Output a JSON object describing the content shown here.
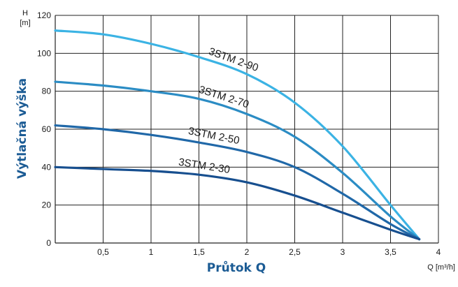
{
  "chart_data": {
    "type": "line",
    "xlabel": "Průtok Q",
    "ylabel": "Výtlačná výška",
    "x_unit_label": "Q [m³/h]",
    "y_unit_label_top": "H",
    "y_unit_label_bottom": "[m]",
    "xlim": [
      0,
      4
    ],
    "ylim": [
      0,
      120
    ],
    "x_ticks": [
      {
        "value": 0.5,
        "label": "0,5"
      },
      {
        "value": 1,
        "label": "1"
      },
      {
        "value": 1.5,
        "label": "1,5"
      },
      {
        "value": 2,
        "label": "2"
      },
      {
        "value": 2.5,
        "label": "2,5"
      },
      {
        "value": 3,
        "label": "3"
      },
      {
        "value": 3.5,
        "label": "3,5"
      },
      {
        "value": 4,
        "label": "4"
      }
    ],
    "y_ticks": [
      {
        "value": 0,
        "label": "0"
      },
      {
        "value": 20,
        "label": "20"
      },
      {
        "value": 40,
        "label": "40"
      },
      {
        "value": 60,
        "label": "60"
      },
      {
        "value": 80,
        "label": "80"
      },
      {
        "value": 100,
        "label": "100"
      },
      {
        "value": 120,
        "label": "120"
      }
    ],
    "grid": true,
    "series": [
      {
        "name": "3STM 2-90",
        "color": "#3bb3e4",
        "x": [
          0,
          0.5,
          1,
          1.5,
          2,
          2.5,
          3,
          3.5,
          3.8
        ],
        "y": [
          112,
          110,
          105,
          98,
          89,
          74,
          51,
          20,
          2
        ]
      },
      {
        "name": "3STM 2-70",
        "color": "#2b8cc4",
        "x": [
          0,
          0.5,
          1,
          1.5,
          2,
          2.5,
          3,
          3.5,
          3.8
        ],
        "y": [
          85,
          83,
          80,
          76,
          68,
          56,
          37,
          14,
          2
        ]
      },
      {
        "name": "3STM 2-50",
        "color": "#2068a8",
        "x": [
          0,
          0.5,
          1,
          1.5,
          2,
          2.5,
          3,
          3.5,
          3.8
        ],
        "y": [
          62,
          60,
          57,
          53,
          48,
          40,
          26,
          10,
          2
        ]
      },
      {
        "name": "3STM 2-30",
        "color": "#174f8f",
        "x": [
          0,
          0.5,
          1,
          1.5,
          2,
          2.5,
          3,
          3.5,
          3.8
        ],
        "y": [
          40,
          39,
          38,
          36,
          32,
          25,
          16,
          7,
          2
        ]
      }
    ]
  }
}
